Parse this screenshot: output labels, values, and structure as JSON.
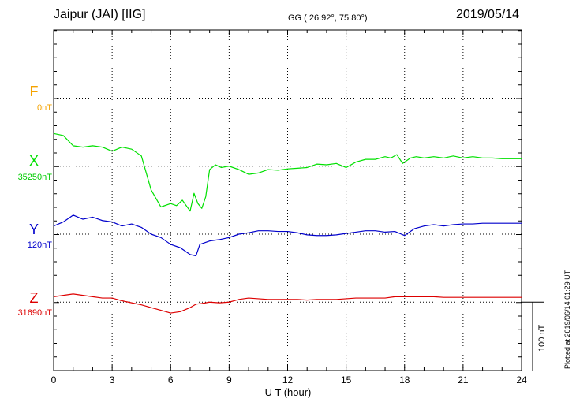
{
  "header": {
    "station": "Jaipur (JAI)  [IIG]",
    "coords": "GG ( 26.92°,  75.80°)",
    "date": "2019/05/14"
  },
  "footer": {
    "plotted": "Plotted at 2019/06/14 01:29 UT",
    "scale_label": "100 nT"
  },
  "chart_data": {
    "type": "line",
    "xlabel": "U T (hour)",
    "xlim": [
      0,
      24
    ],
    "xticks": [
      "0",
      "3",
      "6",
      "9",
      "12",
      "15",
      "18",
      "21",
      "24"
    ],
    "y_scale_nT_per_div": 100,
    "grid": true,
    "series": [
      {
        "name": "F",
        "baseline": "0nT",
        "color": "#f5a300",
        "x": [],
        "y": []
      },
      {
        "name": "X",
        "baseline": "35250nT",
        "color": "#00e000",
        "x": [
          0,
          0.5,
          1,
          1.5,
          2,
          2.5,
          3,
          3.5,
          4,
          4.5,
          5,
          5.5,
          6,
          6.3,
          6.6,
          7,
          7.2,
          7.4,
          7.6,
          7.8,
          8,
          8.3,
          8.6,
          9,
          9.5,
          10,
          10.5,
          11,
          11.5,
          12,
          12.5,
          13,
          13.5,
          14,
          14.5,
          15,
          15.5,
          16,
          16.5,
          17,
          17.3,
          17.6,
          17.9,
          18.1,
          18.3,
          18.6,
          19,
          19.5,
          20,
          20.5,
          21,
          21.5,
          22,
          22.5,
          23,
          23.5,
          24
        ],
        "y": [
          48,
          45,
          30,
          28,
          30,
          28,
          22,
          28,
          25,
          15,
          -35,
          -60,
          -55,
          -58,
          -50,
          -66,
          -40,
          -55,
          -62,
          -45,
          -5,
          2,
          -2,
          0,
          -5,
          -12,
          -10,
          -5,
          -6,
          -4,
          -3,
          -2,
          3,
          2,
          4,
          -2,
          6,
          10,
          10,
          14,
          12,
          17,
          4,
          8,
          12,
          14,
          12,
          14,
          12,
          15,
          12,
          14,
          12,
          12,
          11,
          11,
          11
        ]
      },
      {
        "name": "Y",
        "baseline": "120nT",
        "color": "#0000cc",
        "x": [
          0,
          0.5,
          1,
          1.5,
          2,
          2.5,
          3,
          3.5,
          4,
          4.5,
          5,
          5.5,
          6,
          6.5,
          7,
          7.3,
          7.5,
          8,
          8.5,
          9,
          9.5,
          10,
          10.5,
          11,
          11.5,
          12,
          12.5,
          13,
          13.5,
          14,
          14.5,
          15,
          15.5,
          16,
          16.5,
          17,
          17.5,
          18,
          18.5,
          19,
          19.5,
          20,
          20.5,
          21,
          21.5,
          22,
          22.5,
          23,
          23.5,
          24
        ],
        "y": [
          12,
          18,
          28,
          22,
          25,
          20,
          18,
          12,
          15,
          10,
          0,
          -5,
          -15,
          -20,
          -30,
          -32,
          -15,
          -10,
          -8,
          -5,
          0,
          2,
          5,
          5,
          4,
          4,
          2,
          -1,
          -2,
          -2,
          -1,
          1,
          3,
          5,
          5,
          3,
          4,
          -2,
          8,
          12,
          14,
          12,
          14,
          15,
          15,
          16,
          16,
          16,
          16,
          16
        ]
      },
      {
        "name": "Z",
        "baseline": "31690nT",
        "color": "#dd0000",
        "x": [
          0,
          0.5,
          1,
          1.5,
          2,
          2.5,
          3,
          3.5,
          4,
          4.5,
          5,
          5.5,
          6,
          6.5,
          7,
          7.3,
          7.6,
          8,
          8.5,
          9,
          9.5,
          10,
          10.5,
          11,
          11.5,
          12,
          12.5,
          13,
          13.5,
          14,
          14.5,
          15,
          15.5,
          16,
          16.5,
          17,
          17.5,
          18,
          18.5,
          19,
          19.5,
          20,
          20.5,
          21,
          21.5,
          22,
          22.5,
          23,
          23.5,
          24
        ],
        "y": [
          8,
          10,
          12,
          10,
          8,
          6,
          6,
          2,
          -1,
          -4,
          -8,
          -12,
          -16,
          -14,
          -8,
          -3,
          -2,
          0,
          -1,
          0,
          4,
          6,
          5,
          4,
          4,
          4,
          4,
          3,
          4,
          4,
          4,
          5,
          6,
          6,
          6,
          6,
          8,
          8,
          8,
          8,
          8,
          7,
          7,
          7,
          7,
          7,
          7,
          7,
          7,
          7
        ]
      }
    ]
  }
}
